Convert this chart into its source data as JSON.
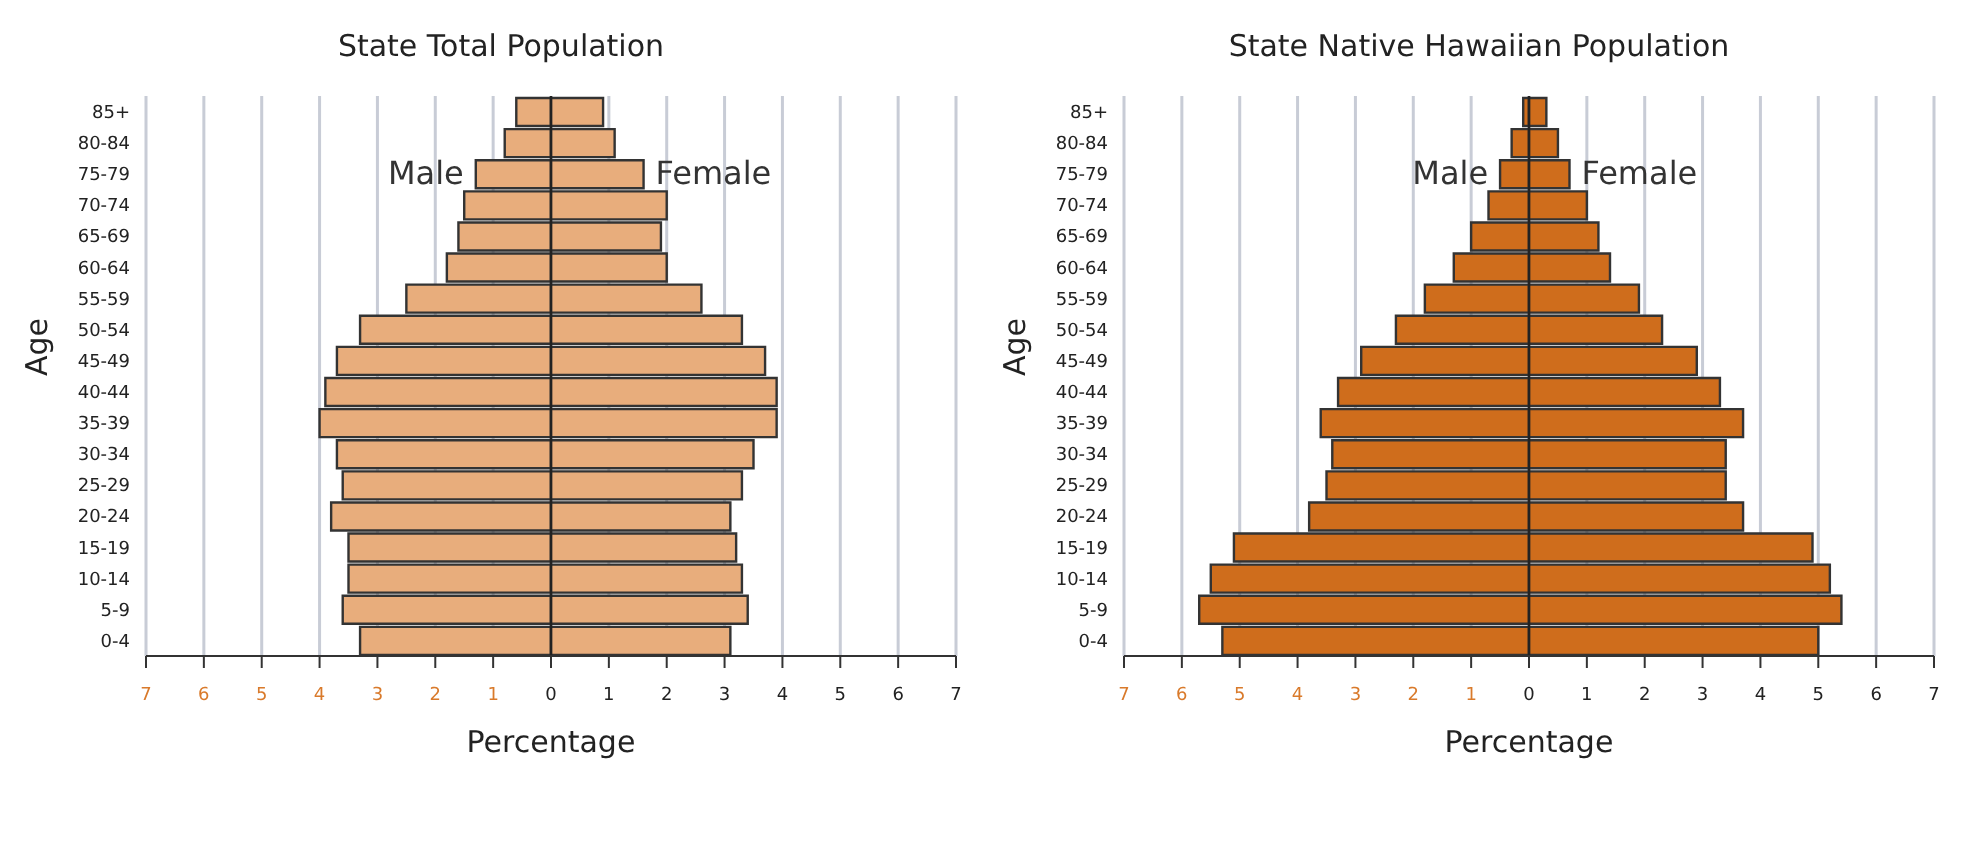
{
  "chart_data": [
    {
      "type": "bar",
      "orientation": "horizontal",
      "stacked": true,
      "title": "State Total Population",
      "xlabel": "Percentage",
      "ylabel": "Age",
      "categories": [
        "85+",
        "80-84",
        "75-79",
        "70-74",
        "65-69",
        "60-64",
        "55-59",
        "50-54",
        "45-49",
        "40-44",
        "35-39",
        "30-34",
        "25-29",
        "20-24",
        "15-19",
        "10-14",
        "5-9",
        "0-4"
      ],
      "series": [
        {
          "name": "Male",
          "color": "#e8ad7c",
          "values": [
            -0.6,
            -0.8,
            -1.3,
            -1.5,
            -1.6,
            -1.8,
            -2.5,
            -3.3,
            -3.7,
            -3.9,
            -4.0,
            -3.7,
            -3.6,
            -3.8,
            -3.5,
            -3.5,
            -3.6,
            -3.3
          ]
        },
        {
          "name": "Female",
          "color": "#e8ad7c",
          "values": [
            0.9,
            1.1,
            1.6,
            2.0,
            1.9,
            2.0,
            2.6,
            3.3,
            3.7,
            3.9,
            3.9,
            3.5,
            3.3,
            3.1,
            3.2,
            3.3,
            3.4,
            3.1
          ]
        }
      ],
      "xlim": [
        -7,
        7
      ],
      "xticks": [
        {
          "value": -7,
          "label": "7"
        },
        {
          "value": -6,
          "label": "6"
        },
        {
          "value": -5,
          "label": "5"
        },
        {
          "value": -4,
          "label": "4"
        },
        {
          "value": -3,
          "label": "3"
        },
        {
          "value": -2,
          "label": "2"
        },
        {
          "value": -1,
          "label": "1"
        },
        0,
        1,
        2,
        3,
        4,
        5,
        6,
        7
      ],
      "grid": "x"
    },
    {
      "type": "bar",
      "orientation": "horizontal",
      "stacked": true,
      "title": "State Native Hawaiian Population",
      "xlabel": "Percentage",
      "ylabel": "Age",
      "categories": [
        "85+",
        "80-84",
        "75-79",
        "70-74",
        "65-69",
        "60-64",
        "55-59",
        "50-54",
        "45-49",
        "40-44",
        "35-39",
        "30-34",
        "25-29",
        "20-24",
        "15-19",
        "10-14",
        "5-9",
        "0-4"
      ],
      "series": [
        {
          "name": "Male",
          "color": "#cf6d1c",
          "values": [
            -0.1,
            -0.3,
            -0.5,
            -0.7,
            -1.0,
            -1.3,
            -1.8,
            -2.3,
            -2.9,
            -3.3,
            -3.6,
            -3.4,
            -3.5,
            -3.8,
            -5.1,
            -5.5,
            -5.7,
            -5.3
          ]
        },
        {
          "name": "Female",
          "color": "#cf6d1c",
          "values": [
            0.3,
            0.5,
            0.7,
            1.0,
            1.2,
            1.4,
            1.9,
            2.3,
            2.9,
            3.3,
            3.7,
            3.4,
            3.4,
            3.7,
            4.9,
            5.2,
            5.4,
            5.0
          ]
        }
      ],
      "xlim": [
        -7,
        7
      ],
      "xticks": [
        {
          "value": -7,
          "label": "7"
        },
        {
          "value": -6,
          "label": "6"
        },
        {
          "value": -5,
          "label": "5"
        },
        {
          "value": -4,
          "label": "4"
        },
        {
          "value": -3,
          "label": "3"
        },
        {
          "value": -2,
          "label": "2"
        },
        {
          "value": -1,
          "label": "1"
        },
        0,
        1,
        2,
        3,
        4,
        5,
        6,
        7
      ],
      "grid": "x"
    }
  ]
}
